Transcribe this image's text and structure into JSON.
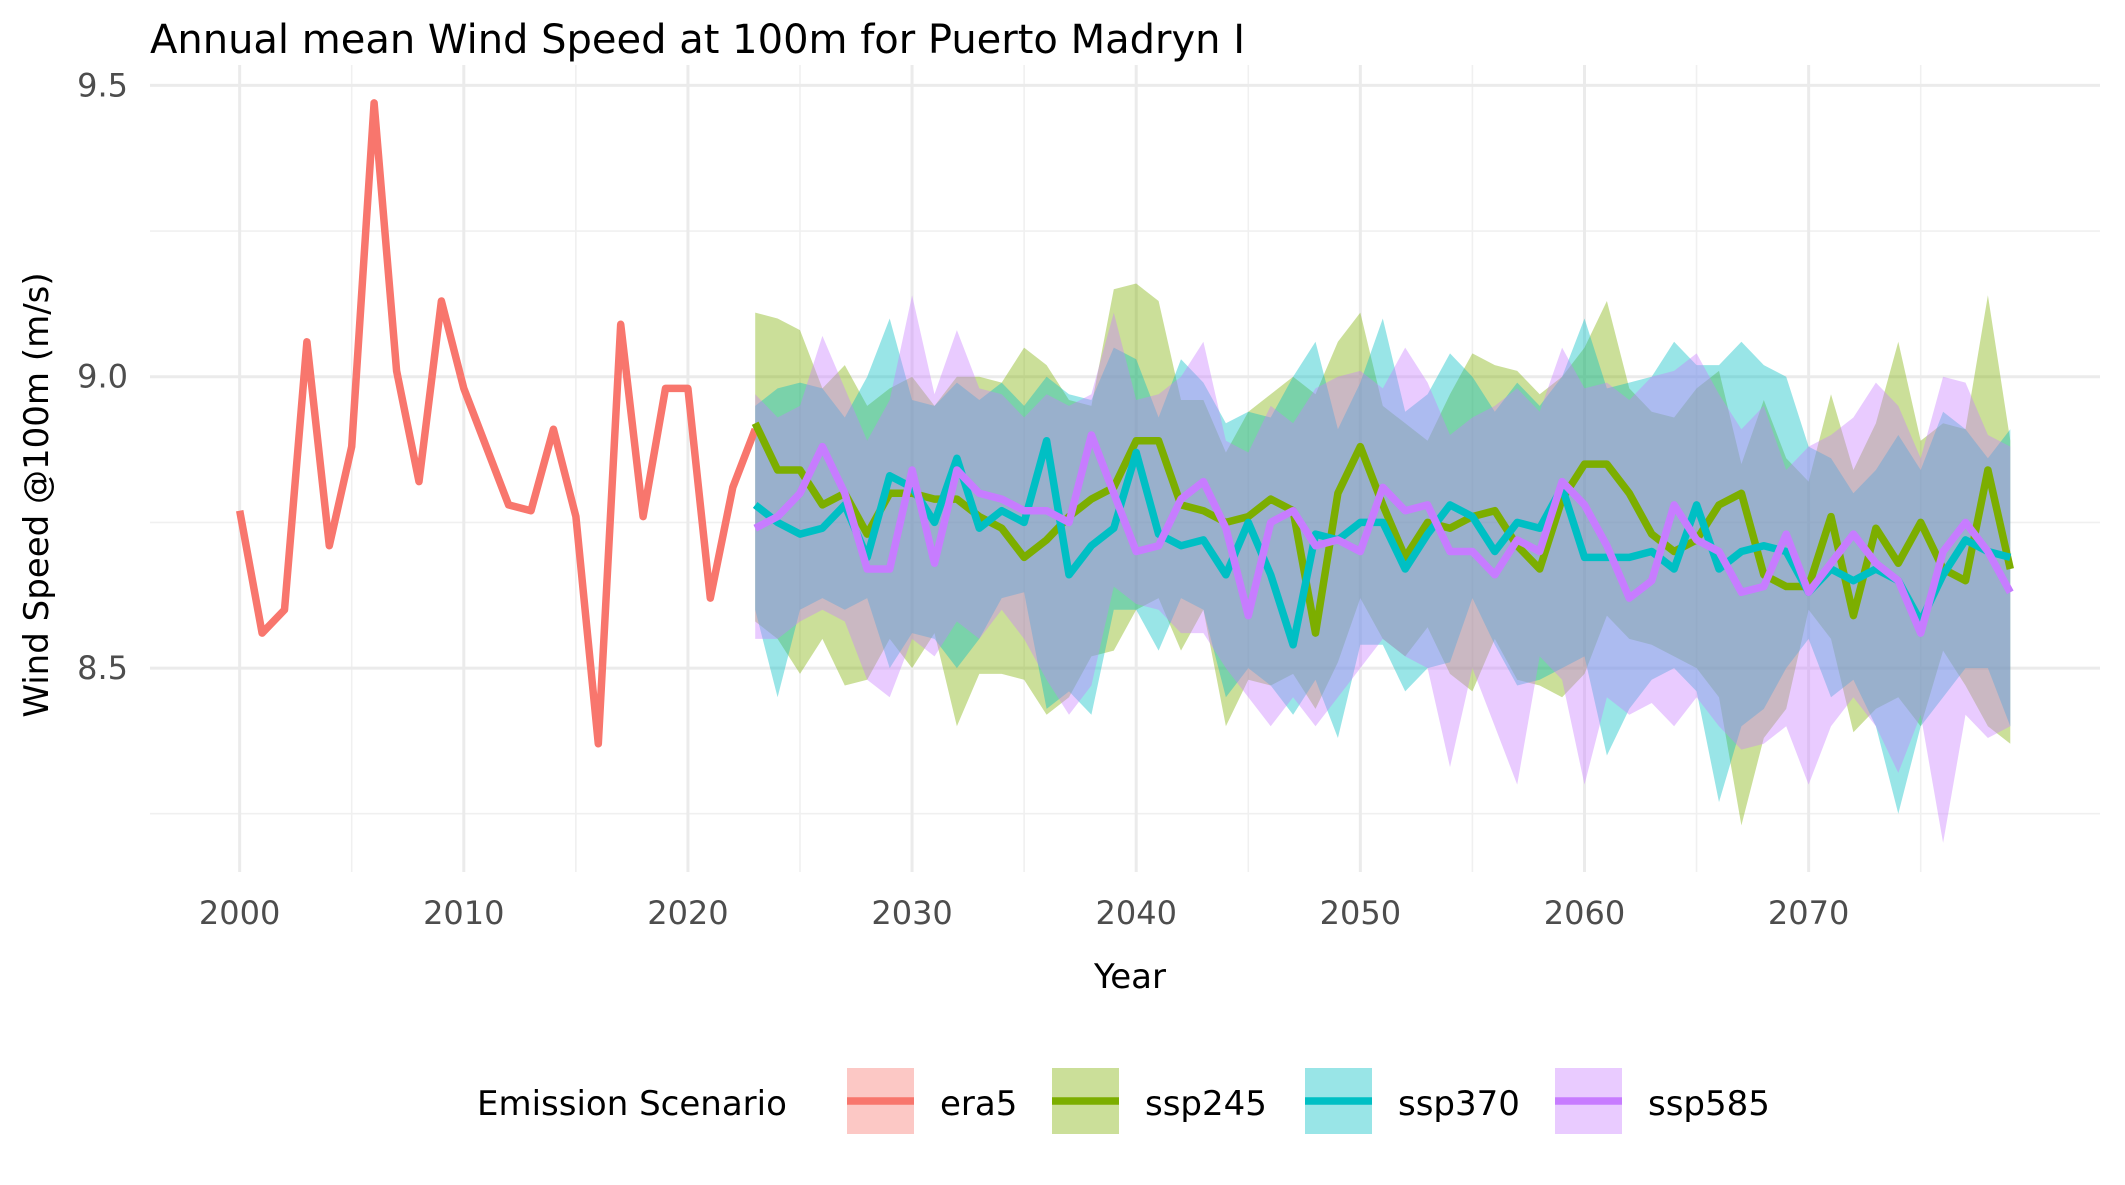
{
  "chart_data": {
    "type": "line",
    "title": "Annual mean Wind Speed at 100m for Puerto Madryn I",
    "xlabel": "Year",
    "ylabel": "Wind Speed @100m (m/s)",
    "xlim": [
      1996,
      2083
    ],
    "ylim": [
      8.15,
      9.535
    ],
    "x_ticks": [
      2000,
      2010,
      2020,
      2030,
      2040,
      2050,
      2060,
      2070
    ],
    "x_tick_labels": [
      "2000",
      "2010",
      "2020",
      "2030",
      "2040",
      "2050",
      "2060",
      "2070"
    ],
    "y_ticks": [
      8.5,
      9.0,
      9.5
    ],
    "y_tick_labels": [
      "8.5",
      "9.0",
      "9.5"
    ],
    "grid": true,
    "legend_title": "Emission Scenario",
    "legend_position": "bottom",
    "series": [
      {
        "name": "era5",
        "color": "#F8766D",
        "x": [
          2000,
          2001,
          2002,
          2003,
          2004,
          2005,
          2006,
          2007,
          2008,
          2009,
          2010,
          2011,
          2012,
          2013,
          2014,
          2015,
          2016,
          2017,
          2018,
          2019,
          2020,
          2021,
          2022,
          2023
        ],
        "values": [
          8.77,
          8.56,
          8.6,
          9.06,
          8.71,
          8.88,
          9.47,
          9.01,
          8.82,
          9.13,
          8.98,
          8.88,
          8.78,
          8.77,
          8.91,
          8.76,
          8.37,
          9.09,
          8.76,
          8.98,
          8.98,
          8.62,
          8.81,
          8.91
        ],
        "lower": [],
        "upper": []
      },
      {
        "name": "ssp245",
        "color": "#7CAE00",
        "x": [
          2023,
          2024,
          2025,
          2026,
          2027,
          2028,
          2029,
          2030,
          2031,
          2032,
          2033,
          2034,
          2035,
          2036,
          2037,
          2038,
          2039,
          2040,
          2041,
          2042,
          2043,
          2044,
          2045,
          2046,
          2047,
          2048,
          2049,
          2050,
          2051,
          2052,
          2053,
          2054,
          2055,
          2056,
          2057,
          2058,
          2059,
          2060,
          2061,
          2062,
          2063,
          2064,
          2065,
          2066,
          2067,
          2068,
          2069,
          2070,
          2071,
          2072,
          2073,
          2074,
          2075,
          2076,
          2077,
          2078,
          2079
        ],
        "values": [
          8.92,
          8.84,
          8.84,
          8.78,
          8.8,
          8.73,
          8.8,
          8.8,
          8.79,
          8.79,
          8.76,
          8.74,
          8.69,
          8.72,
          8.76,
          8.79,
          8.81,
          8.89,
          8.89,
          8.78,
          8.77,
          8.75,
          8.76,
          8.79,
          8.77,
          8.56,
          8.8,
          8.88,
          8.78,
          8.69,
          8.75,
          8.74,
          8.76,
          8.77,
          8.71,
          8.67,
          8.79,
          8.85,
          8.85,
          8.8,
          8.73,
          8.7,
          8.72,
          8.78,
          8.8,
          8.66,
          8.64,
          8.64,
          8.76,
          8.59,
          8.74,
          8.68,
          8.75,
          8.67,
          8.65,
          8.84,
          8.67
        ],
        "lower": [
          8.58,
          8.55,
          8.49,
          8.55,
          8.47,
          8.48,
          8.55,
          8.5,
          8.56,
          8.4,
          8.49,
          8.49,
          8.48,
          8.42,
          8.45,
          8.52,
          8.53,
          8.6,
          8.62,
          8.53,
          8.6,
          8.4,
          8.48,
          8.47,
          8.49,
          8.43,
          8.51,
          8.62,
          8.55,
          8.52,
          8.57,
          8.49,
          8.46,
          8.55,
          8.48,
          8.47,
          8.45,
          8.49,
          8.59,
          8.55,
          8.54,
          8.52,
          8.5,
          8.45,
          8.23,
          8.38,
          8.43,
          8.6,
          8.55,
          8.39,
          8.43,
          8.45,
          8.4,
          8.53,
          8.47,
          8.4,
          8.37
        ],
        "upper": [
          9.11,
          9.1,
          9.08,
          8.98,
          9.02,
          8.95,
          8.98,
          9.0,
          8.95,
          9.0,
          9.0,
          8.99,
          9.05,
          9.02,
          8.96,
          8.95,
          9.15,
          9.16,
          9.13,
          8.96,
          8.96,
          8.87,
          8.94,
          8.97,
          9.0,
          8.97,
          9.06,
          9.11,
          8.95,
          8.92,
          8.89,
          8.97,
          9.04,
          9.02,
          9.01,
          8.97,
          9.0,
          9.05,
          9.13,
          8.98,
          8.94,
          8.93,
          8.98,
          9.01,
          8.85,
          8.96,
          8.86,
          8.82,
          8.97,
          8.84,
          8.92,
          9.06,
          8.89,
          8.92,
          8.91,
          9.14,
          8.89
        ]
      },
      {
        "name": "ssp370",
        "color": "#00BFC4",
        "x": [
          2023,
          2024,
          2025,
          2026,
          2027,
          2028,
          2029,
          2030,
          2031,
          2032,
          2033,
          2034,
          2035,
          2036,
          2037,
          2038,
          2039,
          2040,
          2041,
          2042,
          2043,
          2044,
          2045,
          2046,
          2047,
          2048,
          2049,
          2050,
          2051,
          2052,
          2053,
          2054,
          2055,
          2056,
          2057,
          2058,
          2059,
          2060,
          2061,
          2062,
          2063,
          2064,
          2065,
          2066,
          2067,
          2068,
          2069,
          2070,
          2071,
          2072,
          2073,
          2074,
          2075,
          2076,
          2077,
          2078,
          2079
        ],
        "values": [
          8.78,
          8.75,
          8.73,
          8.74,
          8.78,
          8.69,
          8.83,
          8.81,
          8.75,
          8.86,
          8.74,
          8.77,
          8.75,
          8.89,
          8.66,
          8.71,
          8.74,
          8.87,
          8.73,
          8.71,
          8.72,
          8.66,
          8.75,
          8.66,
          8.54,
          8.73,
          8.72,
          8.75,
          8.75,
          8.67,
          8.73,
          8.78,
          8.76,
          8.7,
          8.75,
          8.74,
          8.81,
          8.69,
          8.69,
          8.69,
          8.7,
          8.67,
          8.78,
          8.67,
          8.7,
          8.71,
          8.7,
          8.63,
          8.67,
          8.65,
          8.67,
          8.65,
          8.58,
          8.66,
          8.72,
          8.7,
          8.69
        ],
        "lower": [
          8.6,
          8.45,
          8.6,
          8.62,
          8.6,
          8.62,
          8.5,
          8.56,
          8.55,
          8.5,
          8.55,
          8.62,
          8.63,
          8.43,
          8.46,
          8.42,
          8.6,
          8.6,
          8.53,
          8.62,
          8.6,
          8.45,
          8.5,
          8.47,
          8.42,
          8.48,
          8.38,
          8.54,
          8.54,
          8.46,
          8.5,
          8.51,
          8.62,
          8.54,
          8.47,
          8.48,
          8.5,
          8.52,
          8.35,
          8.43,
          8.48,
          8.5,
          8.46,
          8.27,
          8.4,
          8.43,
          8.5,
          8.55,
          8.45,
          8.48,
          8.4,
          8.25,
          8.4,
          8.45,
          8.5,
          8.5,
          8.4
        ],
        "upper": [
          8.95,
          8.98,
          8.99,
          8.98,
          8.93,
          9.0,
          9.1,
          8.96,
          8.95,
          8.99,
          8.96,
          8.99,
          8.95,
          9.0,
          8.97,
          8.96,
          9.05,
          9.03,
          8.93,
          9.03,
          8.99,
          8.92,
          8.94,
          8.93,
          9.0,
          9.06,
          8.91,
          8.99,
          9.1,
          8.94,
          8.97,
          9.04,
          9.0,
          8.94,
          8.99,
          8.95,
          9.0,
          9.1,
          8.98,
          8.99,
          9.0,
          9.06,
          9.02,
          9.02,
          9.06,
          9.02,
          9.0,
          8.88,
          8.86,
          8.8,
          8.84,
          8.9,
          8.84,
          8.94,
          8.91,
          8.86,
          8.91
        ]
      },
      {
        "name": "ssp585",
        "color": "#C77CFF",
        "x": [
          2023,
          2024,
          2025,
          2026,
          2027,
          2028,
          2029,
          2030,
          2031,
          2032,
          2033,
          2034,
          2035,
          2036,
          2037,
          2038,
          2039,
          2040,
          2041,
          2042,
          2043,
          2044,
          2045,
          2046,
          2047,
          2048,
          2049,
          2050,
          2051,
          2052,
          2053,
          2054,
          2055,
          2056,
          2057,
          2058,
          2059,
          2060,
          2061,
          2062,
          2063,
          2064,
          2065,
          2066,
          2067,
          2068,
          2069,
          2070,
          2071,
          2072,
          2073,
          2074,
          2075,
          2076,
          2077,
          2078,
          2079
        ],
        "values": [
          8.74,
          8.76,
          8.8,
          8.88,
          8.8,
          8.67,
          8.67,
          8.84,
          8.68,
          8.84,
          8.8,
          8.79,
          8.77,
          8.77,
          8.75,
          8.9,
          8.8,
          8.7,
          8.71,
          8.79,
          8.82,
          8.74,
          8.59,
          8.75,
          8.77,
          8.71,
          8.72,
          8.7,
          8.81,
          8.77,
          8.78,
          8.7,
          8.7,
          8.66,
          8.72,
          8.7,
          8.82,
          8.78,
          8.71,
          8.62,
          8.65,
          8.78,
          8.72,
          8.7,
          8.63,
          8.64,
          8.73,
          8.63,
          8.68,
          8.73,
          8.68,
          8.65,
          8.56,
          8.7,
          8.75,
          8.7,
          8.63
        ],
        "lower": [
          8.55,
          8.55,
          8.58,
          8.6,
          8.58,
          8.48,
          8.45,
          8.55,
          8.52,
          8.58,
          8.55,
          8.6,
          8.55,
          8.48,
          8.42,
          8.47,
          8.64,
          8.61,
          8.6,
          8.56,
          8.56,
          8.5,
          8.45,
          8.4,
          8.45,
          8.4,
          8.45,
          8.5,
          8.55,
          8.52,
          8.5,
          8.33,
          8.5,
          8.4,
          8.3,
          8.52,
          8.48,
          8.3,
          8.45,
          8.42,
          8.44,
          8.4,
          8.45,
          8.4,
          8.36,
          8.37,
          8.4,
          8.3,
          8.4,
          8.45,
          8.4,
          8.32,
          8.42,
          8.2,
          8.42,
          8.38,
          8.4
        ],
        "upper": [
          8.97,
          8.93,
          8.95,
          9.07,
          8.98,
          8.89,
          8.96,
          9.14,
          8.97,
          9.08,
          8.98,
          8.97,
          8.93,
          8.97,
          8.95,
          8.97,
          9.11,
          8.96,
          8.97,
          9.0,
          9.06,
          8.89,
          8.87,
          8.95,
          8.92,
          8.98,
          9.0,
          9.01,
          8.98,
          9.05,
          8.99,
          8.9,
          8.93,
          8.95,
          8.98,
          8.94,
          9.05,
          8.98,
          8.99,
          8.96,
          9.0,
          9.01,
          9.04,
          8.97,
          8.91,
          8.95,
          8.84,
          8.88,
          8.9,
          8.93,
          8.99,
          8.95,
          8.86,
          9.0,
          8.99,
          8.9,
          8.88
        ]
      }
    ]
  }
}
